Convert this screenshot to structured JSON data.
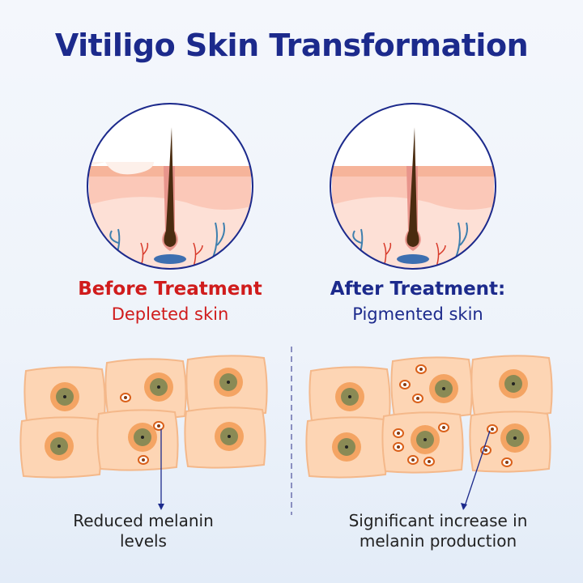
{
  "title": "Vitiligo Skin Transformation",
  "before": {
    "heading": "Before Treatment",
    "subheading": "Depleted skin",
    "caption_line1": "Reduced melanin",
    "caption_line2": "levels"
  },
  "after": {
    "heading": "After Treatment:",
    "subheading": "Pigmented skin",
    "caption_line1": "Significant increase in",
    "caption_line2": "melanin production"
  },
  "colors": {
    "title": "#1c2a8c",
    "before_heading": "#d01c1c",
    "after_heading": "#1c2a8c",
    "cell": "#fdd5b4",
    "nucleus": "#8a8a55"
  }
}
